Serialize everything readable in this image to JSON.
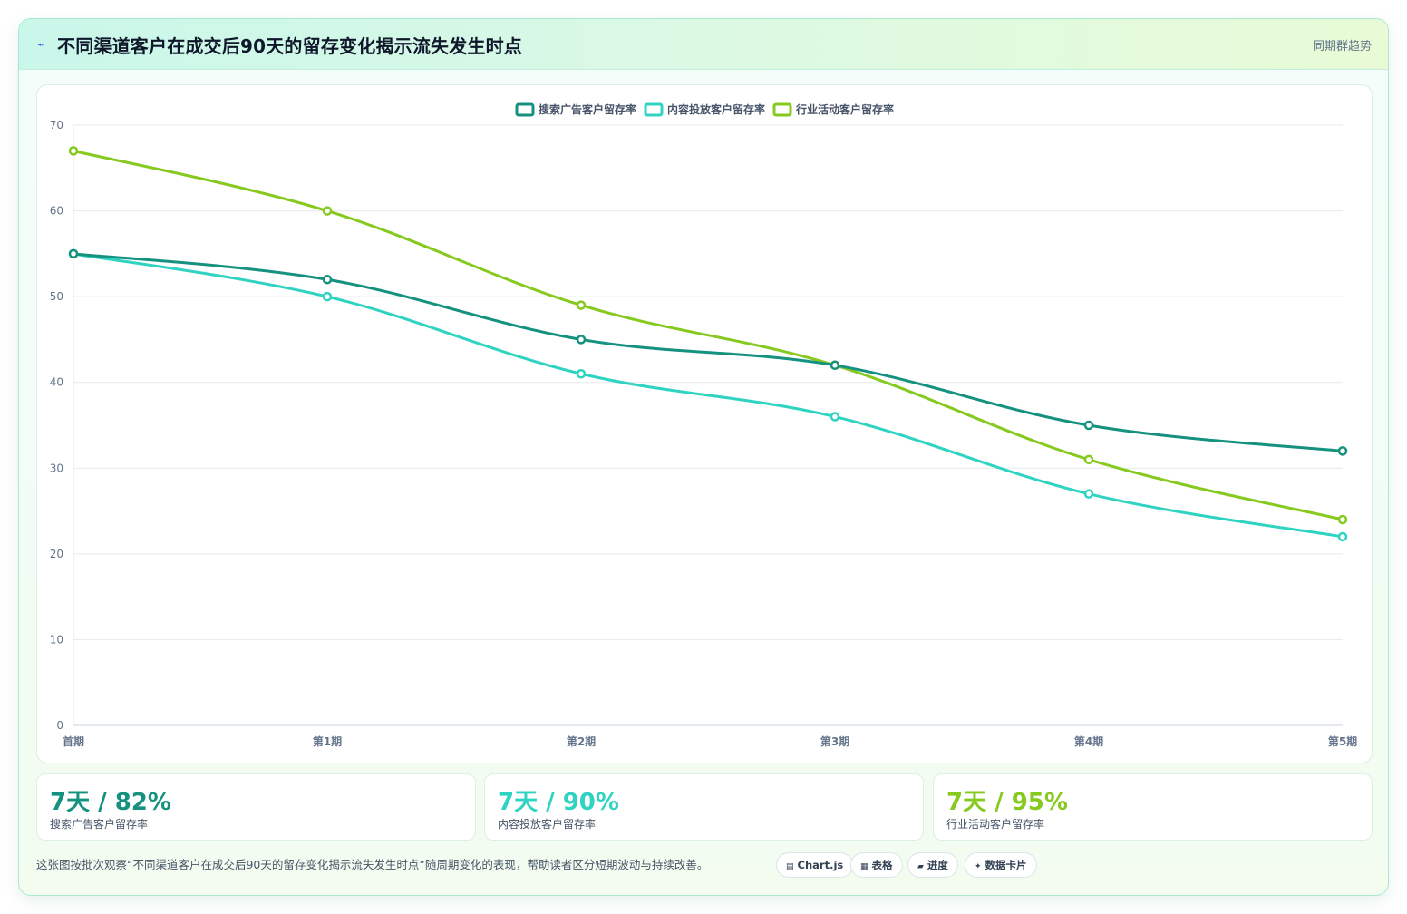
{
  "header": {
    "icon": "lightning-icon",
    "title": "不同渠道客户在成交后90天的留存变化揭示流失发生时点",
    "tag": "同期群趋势"
  },
  "chart_data": {
    "type": "line",
    "categories": [
      "首期",
      "第1期",
      "第2期",
      "第3期",
      "第4期",
      "第5期"
    ],
    "series": [
      {
        "name": "搜索广告客户留存率",
        "color": "#14917f",
        "values": [
          55,
          52,
          45,
          42,
          35,
          32
        ]
      },
      {
        "name": "内容投放客户留存率",
        "color": "#2fd3c2",
        "values": [
          55,
          50,
          41,
          36,
          27,
          22
        ]
      },
      {
        "name": "行业活动客户留存率",
        "color": "#86c91f",
        "values": [
          67,
          60,
          49,
          42,
          31,
          24
        ]
      }
    ],
    "ylim": [
      0,
      70
    ],
    "yticks": [
      0,
      10,
      20,
      30,
      40,
      50,
      60,
      70
    ],
    "grid": true,
    "legend": "top-center",
    "smooth": true
  },
  "stats": [
    {
      "value": "7天 / 82%",
      "label": "搜索广告客户留存率",
      "color": "#14917f"
    },
    {
      "value": "7天 / 90%",
      "label": "内容投放客户留存率",
      "color": "#2fd3c2"
    },
    {
      "value": "7天 / 95%",
      "label": "行业活动客户留存率",
      "color": "#86c91f"
    }
  ],
  "footer": {
    "note": "这张图按批次观察“不同渠道客户在成交后90天的留存变化揭示流失发生时点”随周期变化的表现，帮助读者区分短期波动与持续改善。",
    "chips": [
      {
        "icon": "chart-icon",
        "glyph": "▤",
        "label": "Chart.js"
      },
      {
        "icon": "table-icon",
        "glyph": "▦",
        "label": "表格"
      },
      {
        "icon": "progress-icon",
        "glyph": "▰",
        "label": "进度"
      },
      {
        "icon": "sparkle-icon",
        "glyph": "✦",
        "label": "数据卡片"
      }
    ]
  }
}
